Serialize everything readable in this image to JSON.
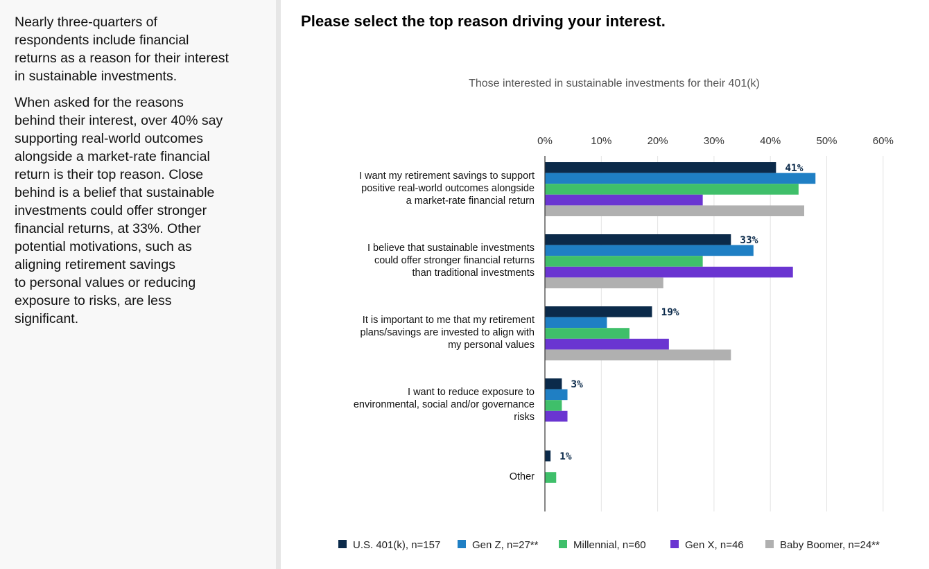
{
  "sidebar": {
    "paragraph_1": "Nearly three-quarters of\nrespondents include financial\nreturns as a reason for their interest\nin sustainable investments.",
    "paragraph_2": "When asked for the reasons\nbehind their interest, over 40% say\nsupporting real-world outcomes\nalongside a market-rate financial\nreturn is their top reason. Close\nbehind is a belief that sustainable\ninvestments could offer stronger\nfinancial returns, at 33%. Other\npotential motivations, such as\naligning retirement savings\nto personal values or reducing\nexposure to risks, are less\nsignificant."
  },
  "main": {
    "title": "Please select the top reason driving your interest."
  },
  "colors": {
    "us_401k": "#0b2a4a",
    "gen_z": "#1f7fc4",
    "millennial": "#3fbf6a",
    "gen_x": "#6a35d1",
    "baby_boomer": "#b0b0b0",
    "gridline": "#e3e3e3",
    "axis": "#333333"
  },
  "chart_data": {
    "type": "bar",
    "orientation": "horizontal",
    "title": "",
    "subtitle": "Those interested in sustainable investments for their 401(k)",
    "xlabel": "",
    "ylabel": "",
    "xlim": [
      0,
      60
    ],
    "xticks": [
      0,
      10,
      20,
      30,
      40,
      50,
      60
    ],
    "xtick_labels": [
      "0%",
      "10%",
      "20%",
      "30%",
      "40%",
      "50%",
      "60%"
    ],
    "grid": true,
    "legend_position": "bottom",
    "categories": [
      [
        "I want my retirement savings to support",
        "positive real-world outcomes alongside",
        "a market-rate financial return"
      ],
      [
        "I believe that sustainable investments",
        "could offer stronger financial returns",
        "than traditional investments"
      ],
      [
        "It is important to me that my retirement",
        "plans/savings are invested to align with",
        "my personal values"
      ],
      [
        "I want to reduce exposure to",
        "environmental, social and/or governance",
        "risks"
      ],
      [
        "Other"
      ]
    ],
    "series": [
      {
        "name": "U.S. 401(k), n=157",
        "color_key": "us_401k",
        "values": [
          41,
          33,
          19,
          3,
          1
        ]
      },
      {
        "name": "Gen Z, n=27**",
        "color_key": "gen_z",
        "values": [
          48,
          37,
          11,
          4,
          0
        ]
      },
      {
        "name": "Millennial, n=60",
        "color_key": "millennial",
        "values": [
          45,
          28,
          15,
          3,
          2
        ]
      },
      {
        "name": "Gen X, n=46",
        "color_key": "gen_x",
        "values": [
          28,
          44,
          22,
          4,
          0
        ]
      },
      {
        "name": "Baby Boomer, n=24**",
        "color_key": "baby_boomer",
        "values": [
          46,
          21,
          33,
          0,
          0
        ]
      }
    ],
    "data_labels": [
      "41%",
      "33%",
      "19%",
      "3%",
      "1%"
    ]
  }
}
